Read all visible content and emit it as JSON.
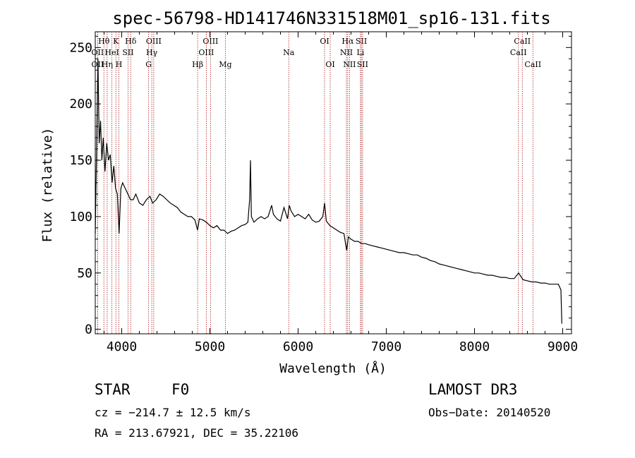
{
  "chart_data": {
    "type": "line",
    "title": "spec-56798-HD141746N331518M01_sp16-131.fits",
    "xlabel": "Wavelength (Å)",
    "ylabel": "Flux (relative)",
    "xlim": [
      3700,
      9100
    ],
    "ylim": [
      -4,
      264
    ],
    "xticks": [
      4000,
      5000,
      6000,
      7000,
      8000,
      9000
    ],
    "yticks": [
      0,
      50,
      100,
      150,
      200,
      250
    ],
    "xtick_labels": [
      "4000",
      "5000",
      "6000",
      "7000",
      "8000",
      "9000"
    ],
    "ytick_labels": [
      "0",
      "50",
      "100",
      "150",
      "200",
      "250"
    ],
    "series": [
      {
        "name": "spectrum",
        "points": [
          [
            3700,
            85
          ],
          [
            3715,
            160
          ],
          [
            3730,
            240
          ],
          [
            3745,
            165
          ],
          [
            3760,
            185
          ],
          [
            3775,
            150
          ],
          [
            3790,
            170
          ],
          [
            3810,
            140
          ],
          [
            3830,
            165
          ],
          [
            3850,
            150
          ],
          [
            3870,
            155
          ],
          [
            3890,
            130
          ],
          [
            3910,
            145
          ],
          [
            3930,
            125
          ],
          [
            3950,
            120
          ],
          [
            3970,
            85
          ],
          [
            3990,
            125
          ],
          [
            4010,
            130
          ],
          [
            4040,
            125
          ],
          [
            4070,
            120
          ],
          [
            4100,
            115
          ],
          [
            4130,
            115
          ],
          [
            4160,
            120
          ],
          [
            4200,
            112
          ],
          [
            4240,
            110
          ],
          [
            4280,
            115
          ],
          [
            4320,
            118
          ],
          [
            4350,
            112
          ],
          [
            4390,
            115
          ],
          [
            4430,
            120
          ],
          [
            4470,
            118
          ],
          [
            4510,
            115
          ],
          [
            4550,
            112
          ],
          [
            4590,
            110
          ],
          [
            4630,
            108
          ],
          [
            4670,
            104
          ],
          [
            4710,
            102
          ],
          [
            4750,
            100
          ],
          [
            4790,
            100
          ],
          [
            4830,
            97
          ],
          [
            4860,
            88
          ],
          [
            4880,
            98
          ],
          [
            4920,
            97
          ],
          [
            4960,
            95
          ],
          [
            5000,
            92
          ],
          [
            5040,
            90
          ],
          [
            5080,
            92
          ],
          [
            5120,
            88
          ],
          [
            5160,
            88
          ],
          [
            5200,
            85
          ],
          [
            5240,
            87
          ],
          [
            5280,
            88
          ],
          [
            5320,
            90
          ],
          [
            5360,
            92
          ],
          [
            5400,
            93
          ],
          [
            5430,
            95
          ],
          [
            5450,
            115
          ],
          [
            5460,
            150
          ],
          [
            5470,
            100
          ],
          [
            5500,
            95
          ],
          [
            5540,
            98
          ],
          [
            5580,
            100
          ],
          [
            5620,
            98
          ],
          [
            5660,
            100
          ],
          [
            5700,
            110
          ],
          [
            5720,
            102
          ],
          [
            5760,
            98
          ],
          [
            5800,
            96
          ],
          [
            5840,
            108
          ],
          [
            5880,
            98
          ],
          [
            5900,
            110
          ],
          [
            5920,
            105
          ],
          [
            5960,
            100
          ],
          [
            6000,
            102
          ],
          [
            6040,
            100
          ],
          [
            6080,
            98
          ],
          [
            6120,
            102
          ],
          [
            6160,
            97
          ],
          [
            6200,
            95
          ],
          [
            6240,
            96
          ],
          [
            6280,
            100
          ],
          [
            6300,
            112
          ],
          [
            6320,
            96
          ],
          [
            6360,
            92
          ],
          [
            6400,
            90
          ],
          [
            6440,
            88
          ],
          [
            6480,
            86
          ],
          [
            6520,
            85
          ],
          [
            6550,
            70
          ],
          [
            6570,
            82
          ],
          [
            6600,
            80
          ],
          [
            6640,
            78
          ],
          [
            6680,
            78
          ],
          [
            6720,
            76
          ],
          [
            6760,
            76
          ],
          [
            6800,
            75
          ],
          [
            6850,
            74
          ],
          [
            6900,
            73
          ],
          [
            6950,
            72
          ],
          [
            7000,
            71
          ],
          [
            7050,
            70
          ],
          [
            7100,
            69
          ],
          [
            7150,
            68
          ],
          [
            7200,
            68
          ],
          [
            7250,
            67
          ],
          [
            7300,
            66
          ],
          [
            7350,
            66
          ],
          [
            7400,
            64
          ],
          [
            7450,
            63
          ],
          [
            7500,
            61
          ],
          [
            7550,
            60
          ],
          [
            7600,
            58
          ],
          [
            7650,
            57
          ],
          [
            7700,
            56
          ],
          [
            7750,
            55
          ],
          [
            7800,
            54
          ],
          [
            7850,
            53
          ],
          [
            7900,
            52
          ],
          [
            7950,
            51
          ],
          [
            8000,
            50
          ],
          [
            8050,
            50
          ],
          [
            8100,
            49
          ],
          [
            8150,
            48
          ],
          [
            8200,
            48
          ],
          [
            8250,
            47
          ],
          [
            8300,
            46
          ],
          [
            8350,
            46
          ],
          [
            8400,
            45
          ],
          [
            8450,
            45
          ],
          [
            8500,
            50
          ],
          [
            8550,
            44
          ],
          [
            8600,
            43
          ],
          [
            8650,
            42
          ],
          [
            8700,
            42
          ],
          [
            8750,
            41
          ],
          [
            8800,
            41
          ],
          [
            8850,
            40
          ],
          [
            8900,
            40
          ],
          [
            8950,
            40
          ],
          [
            8980,
            35
          ],
          [
            8990,
            5
          ]
        ]
      }
    ],
    "line_markers": [
      {
        "label": "OII",
        "x": 3727,
        "row": 2
      },
      {
        "label": "OII",
        "x": 3727,
        "row": 4
      },
      {
        "label": "Hθ",
        "x": 3798,
        "row": 1
      },
      {
        "label": "HeI",
        "x": 3889,
        "row": 2
      },
      {
        "label": "Hη",
        "x": 3835,
        "row": 3
      },
      {
        "label": "K",
        "x": 3934,
        "row": 1
      },
      {
        "label": "H",
        "x": 3968,
        "row": 3
      },
      {
        "label": "SII",
        "x": 4072,
        "row": 2
      },
      {
        "label": "Hδ",
        "x": 4102,
        "row": 1
      },
      {
        "label": "OIII",
        "x": 4363,
        "row": 1
      },
      {
        "label": "Hγ",
        "x": 4341,
        "row": 2
      },
      {
        "label": "G",
        "x": 4305,
        "row": 3
      },
      {
        "label": "Hβ",
        "x": 4861,
        "row": 3
      },
      {
        "label": "OIII",
        "x": 5007,
        "row": 1
      },
      {
        "label": "OIII",
        "x": 4959,
        "row": 2
      },
      {
        "label": "Mg",
        "x": 5175,
        "row": 3
      },
      {
        "label": "Na",
        "x": 5894,
        "row": 2
      },
      {
        "label": "OI",
        "x": 6300,
        "row": 1
      },
      {
        "label": "OI",
        "x": 6364,
        "row": 3
      },
      {
        "label": "Hα",
        "x": 6563,
        "row": 1
      },
      {
        "label": "NII",
        "x": 6548,
        "row": 2
      },
      {
        "label": "NII",
        "x": 6583,
        "row": 3
      },
      {
        "label": "SII",
        "x": 6717,
        "row": 1
      },
      {
        "label": "Li",
        "x": 6707,
        "row": 2
      },
      {
        "label": "SII",
        "x": 6731,
        "row": 3
      },
      {
        "label": "CaII",
        "x": 8542,
        "row": 1
      },
      {
        "label": "CaII",
        "x": 8498,
        "row": 2
      },
      {
        "label": "CaII",
        "x": 8662,
        "row": 3
      }
    ]
  },
  "info": {
    "object_class": "STAR",
    "subclass": "F0",
    "survey": "LAMOST DR3",
    "cz": "cz = −214.7 ± 12.5 km/s",
    "obs_date": "Obs−Date: 20140520",
    "radec": "RA = 213.67921, DEC =  35.22106"
  },
  "colors": {
    "spectrum": "#000000",
    "marker_line": "#b22222",
    "axis": "#000000"
  }
}
